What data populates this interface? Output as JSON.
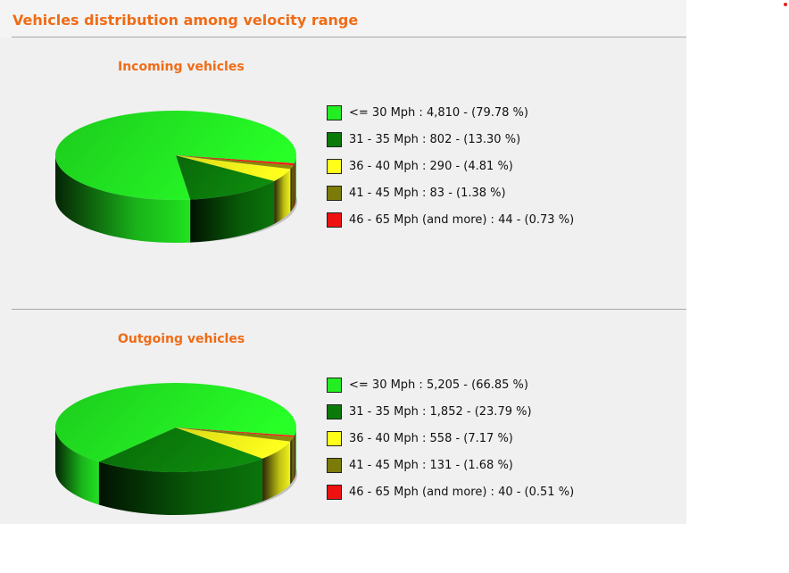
{
  "page": {
    "title": "Vehicles distribution among velocity range"
  },
  "chart_data": [
    {
      "type": "pie",
      "title": "Incoming vehicles",
      "slices": [
        {
          "label": "<=  30 Mph :",
          "count": "4,810",
          "percent": "(79.78 %)",
          "value": 79.78,
          "color": "#22ee22"
        },
        {
          "label": "31 -  35 Mph :",
          "count": "802",
          "percent": "(13.30 %)",
          "value": 13.3,
          "color": "#0b7a0b"
        },
        {
          "label": "36 -  40 Mph :",
          "count": "290",
          "percent": "(4.81 %)",
          "value": 4.81,
          "color": "#ffff1a"
        },
        {
          "label": "41 -  45 Mph :",
          "count": "83",
          "percent": "(1.38 %)",
          "value": 1.38,
          "color": "#7b7b0a"
        },
        {
          "label": "46 -  65 Mph (and more) :",
          "count": "44",
          "percent": "(0.73 %)",
          "value": 0.73,
          "color": "#ee1111"
        }
      ]
    },
    {
      "type": "pie",
      "title": "Outgoing vehicles",
      "slices": [
        {
          "label": "<=  30 Mph :",
          "count": "5,205",
          "percent": "(66.85 %)",
          "value": 66.85,
          "color": "#22ee22"
        },
        {
          "label": "31 -  35 Mph :",
          "count": "1,852",
          "percent": "(23.79 %)",
          "value": 23.79,
          "color": "#0b7a0b"
        },
        {
          "label": "36 -  40 Mph :",
          "count": "558",
          "percent": "(7.17 %)",
          "value": 7.17,
          "color": "#ffff1a"
        },
        {
          "label": "41 -  45 Mph :",
          "count": "131",
          "percent": "(1.68 %)",
          "value": 1.68,
          "color": "#7b7b0a"
        },
        {
          "label": "46 -  65 Mph (and more) :",
          "count": "40",
          "percent": "(0.51 %)",
          "value": 0.51,
          "color": "#ee1111"
        }
      ]
    }
  ]
}
